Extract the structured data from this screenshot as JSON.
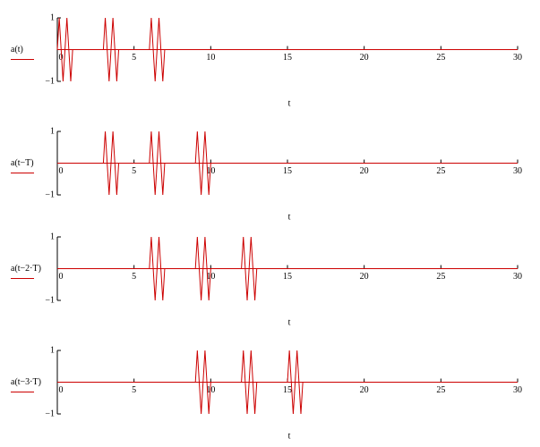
{
  "chart_data": [
    {
      "type": "line",
      "x_label": "t",
      "xlim": [
        0,
        30
      ],
      "xticks": [
        0,
        5,
        10,
        15,
        20,
        25,
        30
      ],
      "ylim": [
        -1,
        1
      ],
      "yticks": [
        {
          "value": -1,
          "label": "−1"
        },
        1
      ],
      "x": [
        0,
        0.125,
        0.25,
        0.375,
        0.5,
        0.625,
        0.75,
        0.875,
        1,
        3,
        3.125,
        3.25,
        3.375,
        3.5,
        3.625,
        3.75,
        3.875,
        4,
        6,
        6.125,
        6.25,
        6.375,
        6.5,
        6.625,
        6.75,
        6.875,
        7,
        30
      ],
      "series": [
        {
          "name": "a(t)",
          "color": "#cc0000",
          "values": [
            0,
            1,
            0,
            -1,
            0,
            1,
            0,
            -1,
            0,
            0,
            1,
            0,
            -1,
            0,
            1,
            0,
            -1,
            0,
            0,
            1,
            0,
            -1,
            0,
            1,
            0,
            -1,
            0,
            0
          ]
        }
      ]
    },
    {
      "type": "line",
      "x_label": "t",
      "xlim": [
        0,
        30
      ],
      "xticks": [
        0,
        5,
        10,
        15,
        20,
        25,
        30
      ],
      "ylim": [
        -1,
        1
      ],
      "yticks": [
        {
          "value": -1,
          "label": "−1"
        },
        1
      ],
      "x": [
        0,
        3,
        3.125,
        3.25,
        3.375,
        3.5,
        3.625,
        3.75,
        3.875,
        4,
        6,
        6.125,
        6.25,
        6.375,
        6.5,
        6.625,
        6.75,
        6.875,
        7,
        9,
        9.125,
        9.25,
        9.375,
        9.5,
        9.625,
        9.75,
        9.875,
        10,
        30
      ],
      "series": [
        {
          "name": "a(t−T)",
          "color": "#cc0000",
          "values": [
            0,
            0,
            1,
            0,
            -1,
            0,
            1,
            0,
            -1,
            0,
            0,
            1,
            0,
            -1,
            0,
            1,
            0,
            -1,
            0,
            0,
            1,
            0,
            -1,
            0,
            1,
            0,
            -1,
            0,
            0
          ]
        }
      ]
    },
    {
      "type": "line",
      "x_label": "t",
      "xlim": [
        0,
        30
      ],
      "xticks": [
        0,
        5,
        10,
        15,
        20,
        25,
        30
      ],
      "ylim": [
        -1,
        1
      ],
      "yticks": [
        {
          "value": -1,
          "label": "−1"
        },
        1
      ],
      "x": [
        0,
        6,
        6.125,
        6.25,
        6.375,
        6.5,
        6.625,
        6.75,
        6.875,
        7,
        9,
        9.125,
        9.25,
        9.375,
        9.5,
        9.625,
        9.75,
        9.875,
        10,
        12,
        12.125,
        12.25,
        12.375,
        12.5,
        12.625,
        12.75,
        12.875,
        13,
        30
      ],
      "series": [
        {
          "name": "a(t−2·T)",
          "color": "#cc0000",
          "values": [
            0,
            0,
            1,
            0,
            -1,
            0,
            1,
            0,
            -1,
            0,
            0,
            1,
            0,
            -1,
            0,
            1,
            0,
            -1,
            0,
            0,
            1,
            0,
            -1,
            0,
            1,
            0,
            -1,
            0,
            0
          ]
        }
      ]
    },
    {
      "type": "line",
      "x_label": "t",
      "xlim": [
        0,
        30
      ],
      "xticks": [
        0,
        5,
        10,
        15,
        20,
        25,
        30
      ],
      "ylim": [
        -1,
        1
      ],
      "yticks": [
        {
          "value": -1,
          "label": "−1"
        },
        1
      ],
      "x": [
        0,
        9,
        9.125,
        9.25,
        9.375,
        9.5,
        9.625,
        9.75,
        9.875,
        10,
        12,
        12.125,
        12.25,
        12.375,
        12.5,
        12.625,
        12.75,
        12.875,
        13,
        15,
        15.125,
        15.25,
        15.375,
        15.5,
        15.625,
        15.75,
        15.875,
        16,
        30
      ],
      "series": [
        {
          "name": "a(t−3·T)",
          "color": "#cc0000",
          "values": [
            0,
            0,
            1,
            0,
            -1,
            0,
            1,
            0,
            -1,
            0,
            0,
            1,
            0,
            -1,
            0,
            1,
            0,
            -1,
            0,
            0,
            1,
            0,
            -1,
            0,
            1,
            0,
            -1,
            0,
            0
          ]
        }
      ]
    }
  ]
}
